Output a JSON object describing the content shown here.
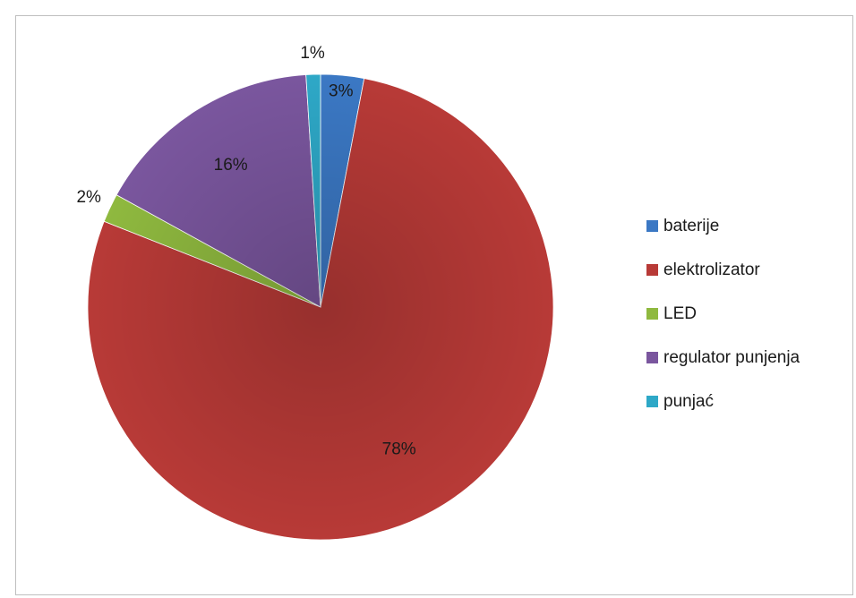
{
  "chart_data": {
    "type": "pie",
    "title": "",
    "categories": [
      "baterije",
      "elektrolizator",
      "LED",
      "regulator punjenja",
      "punjać"
    ],
    "values": [
      3,
      78,
      2,
      16,
      1
    ],
    "data_labels": [
      "3%",
      "78%",
      "2%",
      "16%",
      "1%"
    ],
    "colors": [
      "#3b78c4",
      "#b83a37",
      "#8fb93f",
      "#7a569e",
      "#2ea8c7"
    ],
    "legend_position": "right"
  }
}
